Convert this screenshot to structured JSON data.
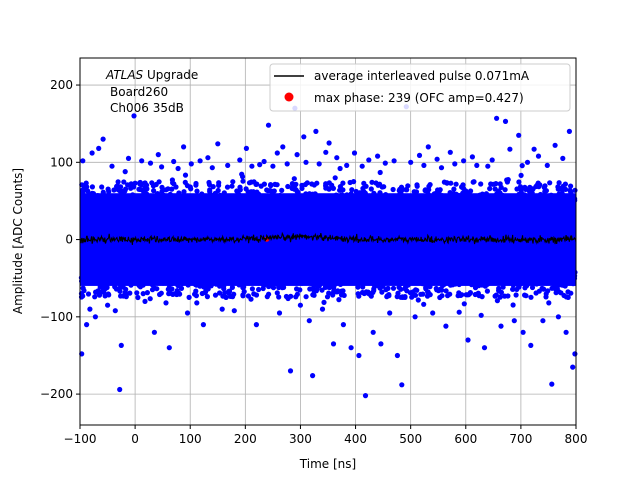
{
  "chart_data": {
    "type": "scatter",
    "xlabel": "Time [ns]",
    "ylabel": "Amplitude [ADC Counts]",
    "xlim": [
      -100,
      800
    ],
    "ylim": [
      -240,
      235
    ],
    "x_ticks": [
      -100,
      0,
      100,
      200,
      300,
      400,
      500,
      600,
      700,
      800
    ],
    "y_ticks": [
      -200,
      -100,
      0,
      100,
      200
    ],
    "x_tick_labels": [
      "−100",
      "0",
      "100",
      "200",
      "300",
      "400",
      "500",
      "600",
      "700",
      "800"
    ],
    "y_tick_labels": [
      "−200",
      "−100",
      "0",
      "100",
      "200"
    ],
    "grid": true,
    "legend_position": "top-right",
    "annotation": {
      "title_italic": "ATLAS",
      "title_rest": " Upgrade",
      "line2": "Board260",
      "line3": "Ch006 35dB"
    },
    "series": [
      {
        "name": "average interleaved pulse 0.071mA",
        "type": "line",
        "color": "#000000",
        "description_values": "near-zero average baseline, roughly between -8 and +10 ADC counts across the full time range"
      },
      {
        "name": "max phase: 239 (OFC amp=0.427)",
        "type": "scatter",
        "color": "#ff0000",
        "x": [
          239
        ],
        "y": [
          0.427
        ]
      },
      {
        "name": "",
        "type": "scatter",
        "color": "#0000ff",
        "band_range": [
          -60,
          60
        ],
        "outliers": [
          {
            "x": -97,
            "y": -148
          },
          {
            "x": -95,
            "y": 102
          },
          {
            "x": -88,
            "y": -110
          },
          {
            "x": -82,
            "y": -90
          },
          {
            "x": -78,
            "y": 112
          },
          {
            "x": -72,
            "y": -100
          },
          {
            "x": -66,
            "y": 118
          },
          {
            "x": -58,
            "y": 130
          },
          {
            "x": -50,
            "y": -85
          },
          {
            "x": -42,
            "y": 95
          },
          {
            "x": -36,
            "y": -92
          },
          {
            "x": -28,
            "y": -194
          },
          {
            "x": -25,
            "y": -137
          },
          {
            "x": -18,
            "y": 88
          },
          {
            "x": -12,
            "y": 105
          },
          {
            "x": -2,
            "y": 160
          },
          {
            "x": 5,
            "y": -75
          },
          {
            "x": 12,
            "y": 102
          },
          {
            "x": 18,
            "y": -80
          },
          {
            "x": 28,
            "y": 99
          },
          {
            "x": 35,
            "y": -120
          },
          {
            "x": 42,
            "y": 110
          },
          {
            "x": 48,
            "y": 94
          },
          {
            "x": 56,
            "y": -82
          },
          {
            "x": 62,
            "y": -140
          },
          {
            "x": 70,
            "y": 101
          },
          {
            "x": 78,
            "y": 92
          },
          {
            "x": 88,
            "y": 120
          },
          {
            "x": 95,
            "y": -95
          },
          {
            "x": 102,
            "y": 98
          },
          {
            "x": 112,
            "y": -82
          },
          {
            "x": 118,
            "y": 102
          },
          {
            "x": 124,
            "y": -110
          },
          {
            "x": 132,
            "y": 106
          },
          {
            "x": 140,
            "y": 93
          },
          {
            "x": 150,
            "y": 124
          },
          {
            "x": 158,
            "y": -90
          },
          {
            "x": 168,
            "y": 96
          },
          {
            "x": 180,
            "y": -92
          },
          {
            "x": 190,
            "y": 103
          },
          {
            "x": 202,
            "y": 118
          },
          {
            "x": 212,
            "y": 95
          },
          {
            "x": 220,
            "y": -110
          },
          {
            "x": 226,
            "y": 97
          },
          {
            "x": 234,
            "y": 101
          },
          {
            "x": 242,
            "y": 148
          },
          {
            "x": 250,
            "y": 95
          },
          {
            "x": 258,
            "y": 112
          },
          {
            "x": 262,
            "y": -95
          },
          {
            "x": 268,
            "y": 120
          },
          {
            "x": 276,
            "y": 98
          },
          {
            "x": 282,
            "y": -170
          },
          {
            "x": 290,
            "y": 170
          },
          {
            "x": 294,
            "y": 110
          },
          {
            "x": 300,
            "y": -85
          },
          {
            "x": 306,
            "y": 133
          },
          {
            "x": 310,
            "y": 100
          },
          {
            "x": 316,
            "y": -105
          },
          {
            "x": 322,
            "y": -176
          },
          {
            "x": 328,
            "y": 140
          },
          {
            "x": 334,
            "y": 98
          },
          {
            "x": 340,
            "y": -90
          },
          {
            "x": 346,
            "y": 113
          },
          {
            "x": 352,
            "y": 125
          },
          {
            "x": 360,
            "y": -135
          },
          {
            "x": 366,
            "y": 106
          },
          {
            "x": 372,
            "y": 92
          },
          {
            "x": 378,
            "y": -110
          },
          {
            "x": 384,
            "y": 96
          },
          {
            "x": 392,
            "y": -140
          },
          {
            "x": 398,
            "y": 112
          },
          {
            "x": 406,
            "y": -150
          },
          {
            "x": 412,
            "y": 95
          },
          {
            "x": 418,
            "y": -202
          },
          {
            "x": 424,
            "y": 103
          },
          {
            "x": 432,
            "y": -120
          },
          {
            "x": 440,
            "y": 108
          },
          {
            "x": 446,
            "y": -135
          },
          {
            "x": 454,
            "y": 99
          },
          {
            "x": 462,
            "y": -95
          },
          {
            "x": 470,
            "y": 102
          },
          {
            "x": 476,
            "y": -150
          },
          {
            "x": 484,
            "y": -188
          },
          {
            "x": 492,
            "y": 172
          },
          {
            "x": 500,
            "y": 100
          },
          {
            "x": 508,
            "y": -100
          },
          {
            "x": 516,
            "y": 109
          },
          {
            "x": 524,
            "y": 96
          },
          {
            "x": 532,
            "y": 120
          },
          {
            "x": 540,
            "y": -95
          },
          {
            "x": 548,
            "y": 104
          },
          {
            "x": 556,
            "y": 93
          },
          {
            "x": 564,
            "y": -112
          },
          {
            "x": 572,
            "y": 113
          },
          {
            "x": 580,
            "y": 98
          },
          {
            "x": 588,
            "y": -94
          },
          {
            "x": 596,
            "y": 102
          },
          {
            "x": 604,
            "y": -130
          },
          {
            "x": 612,
            "y": 107
          },
          {
            "x": 620,
            "y": 96
          },
          {
            "x": 628,
            "y": -98
          },
          {
            "x": 634,
            "y": -140
          },
          {
            "x": 640,
            "y": 95
          },
          {
            "x": 648,
            "y": 103
          },
          {
            "x": 656,
            "y": 157
          },
          {
            "x": 664,
            "y": -112
          },
          {
            "x": 672,
            "y": 153
          },
          {
            "x": 680,
            "y": 117
          },
          {
            "x": 688,
            "y": -105
          },
          {
            "x": 696,
            "y": 135
          },
          {
            "x": 704,
            "y": -120
          },
          {
            "x": 712,
            "y": 100
          },
          {
            "x": 718,
            "y": -137
          },
          {
            "x": 724,
            "y": 117
          },
          {
            "x": 732,
            "y": 108
          },
          {
            "x": 740,
            "y": -105
          },
          {
            "x": 748,
            "y": 96
          },
          {
            "x": 756,
            "y": -187
          },
          {
            "x": 762,
            "y": 122
          },
          {
            "x": 768,
            "y": -100
          },
          {
            "x": 776,
            "y": 105
          },
          {
            "x": 782,
            "y": -120
          },
          {
            "x": 788,
            "y": 140
          },
          {
            "x": 794,
            "y": -165
          },
          {
            "x": 798,
            "y": -148
          }
        ]
      }
    ]
  }
}
